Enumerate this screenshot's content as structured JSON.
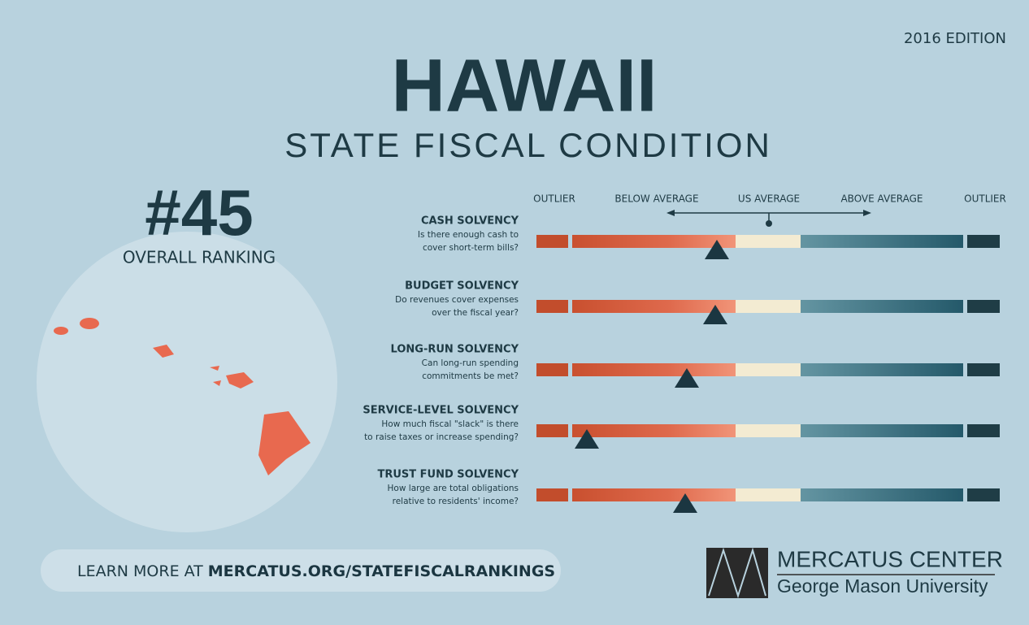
{
  "edition": "2016 EDITION",
  "title": "HAWAII",
  "subtitle": "STATE FISCAL CONDITION",
  "ranking": {
    "rank": "#45",
    "label": "OVERALL RANKING"
  },
  "scale": {
    "labels": [
      "OUTLIER",
      "BELOW AVERAGE",
      "US AVERAGE",
      "ABOVE AVERAGE",
      "OUTLIER"
    ]
  },
  "metrics": [
    {
      "name": "CASH SOLVENCY",
      "question": [
        "Is there enough cash to",
        "cover short-term bills?"
      ]
    },
    {
      "name": "BUDGET SOLVENCY",
      "question": [
        "Do revenues cover expenses",
        "over the fiscal year?"
      ]
    },
    {
      "name": "LONG-RUN SOLVENCY",
      "question": [
        "Can long-run spending",
        "commitments be met?"
      ]
    },
    {
      "name": "SERVICE-LEVEL SOLVENCY",
      "question": [
        "How much fiscal \"slack\" is there",
        "to raise taxes or increase spending?"
      ]
    },
    {
      "name": "TRUST FUND SOLVENCY",
      "question": [
        "How large are total obligations",
        "relative to residents' income?"
      ]
    }
  ],
  "footer": {
    "prefix": "LEARN MORE AT",
    "link": "MERCATUS.ORG/STATEFISCALRANKINGS"
  },
  "logo": {
    "name": "MERCATUS CENTER",
    "university": "George Mason University"
  }
}
